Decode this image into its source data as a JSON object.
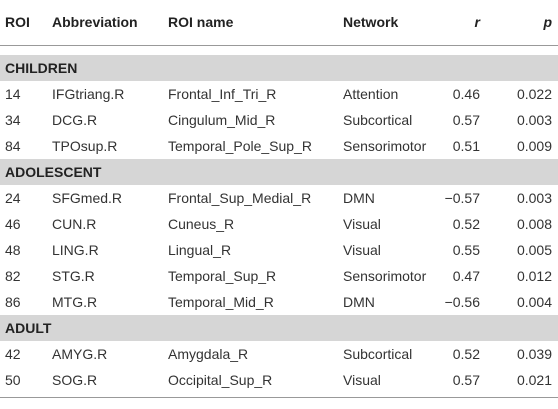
{
  "table": {
    "columns": [
      "ROI",
      "Abbreviation",
      "ROI name",
      "Network",
      "r",
      "p"
    ],
    "groups": [
      {
        "name": "CHILDREN",
        "rows": [
          [
            "14",
            "IFGtriang.R",
            "Frontal_Inf_Tri_R",
            "Attention",
            "0.46",
            "0.022"
          ],
          [
            "34",
            "DCG.R",
            "Cingulum_Mid_R",
            "Subcortical",
            "0.57",
            "0.003"
          ],
          [
            "84",
            "TPOsup.R",
            "Temporal_Pole_Sup_R",
            "Sensorimotor",
            "0.51",
            "0.009"
          ]
        ]
      },
      {
        "name": "ADOLESCENT",
        "rows": [
          [
            "24",
            "SFGmed.R",
            "Frontal_Sup_Medial_R",
            "DMN",
            "−0.57",
            "0.003"
          ],
          [
            "46",
            "CUN.R",
            "Cuneus_R",
            "Visual",
            "0.52",
            "0.008"
          ],
          [
            "48",
            "LING.R",
            "Lingual_R",
            "Visual",
            "0.55",
            "0.005"
          ],
          [
            "82",
            "STG.R",
            "Temporal_Sup_R",
            "Sensorimotor",
            "0.47",
            "0.012"
          ],
          [
            "86",
            "MTG.R",
            "Temporal_Mid_R",
            "DMN",
            "−0.56",
            "0.004"
          ]
        ]
      },
      {
        "name": "ADULT",
        "rows": [
          [
            "42",
            "AMYG.R",
            "Amygdala_R",
            "Subcortical",
            "0.52",
            "0.039"
          ],
          [
            "50",
            "SOG.R",
            "Occipital_Sup_R",
            "Visual",
            "0.57",
            "0.021"
          ]
        ]
      }
    ]
  }
}
